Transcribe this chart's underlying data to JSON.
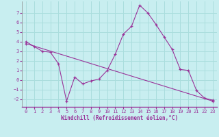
{
  "xlabel": "Windchill (Refroidissement éolien,°C)",
  "bg_color": "#c8eef0",
  "grid_color": "#aadddd",
  "line_color": "#993399",
  "label_color": "#993399",
  "series1_x": [
    0,
    1,
    2,
    3,
    4,
    5,
    6,
    7,
    8,
    9,
    10,
    11,
    12,
    13,
    14,
    15,
    16,
    17,
    18,
    19,
    20,
    21,
    22,
    23
  ],
  "series1_y": [
    4.0,
    3.5,
    3.0,
    2.9,
    1.7,
    -2.2,
    0.3,
    -0.4,
    -0.1,
    0.1,
    1.0,
    2.7,
    4.8,
    5.6,
    7.8,
    7.0,
    5.8,
    4.5,
    3.2,
    1.1,
    1.0,
    -1.1,
    -1.9,
    -2.1
  ],
  "series2_x": [
    0,
    23
  ],
  "series2_y": [
    3.8,
    -2.2
  ],
  "ylim": [
    -2.8,
    8.2
  ],
  "xlim": [
    -0.5,
    23.5
  ],
  "yticks": [
    -2,
    -1,
    0,
    1,
    2,
    3,
    4,
    5,
    6,
    7
  ],
  "xticks": [
    0,
    1,
    2,
    3,
    4,
    5,
    6,
    7,
    8,
    9,
    10,
    11,
    12,
    13,
    14,
    15,
    16,
    17,
    18,
    19,
    20,
    21,
    22,
    23
  ]
}
